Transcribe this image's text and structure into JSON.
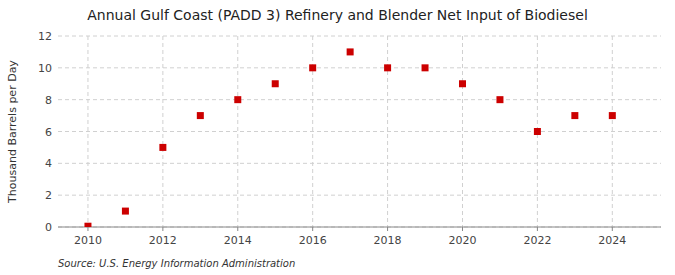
{
  "chart_data": {
    "type": "scatter",
    "title": "Annual Gulf Coast (PADD 3) Refinery and Blender Net Input of Biodiesel",
    "ylabel": "Thousand Barrels per Day",
    "annotations": [
      "Source: U.S. Energy Information Administration"
    ],
    "x": [
      2010,
      2011,
      2012,
      2013,
      2014,
      2015,
      2016,
      2017,
      2018,
      2019,
      2020,
      2021,
      2022,
      2023,
      2024
    ],
    "values": [
      0.05,
      1.0,
      5.0,
      7.0,
      8.0,
      9.0,
      10.0,
      11.0,
      10.0,
      10.0,
      9.0,
      8.0,
      6.0,
      7.0,
      7.0
    ],
    "color": "#cc0000",
    "marker": "square",
    "xlim": [
      2009.2,
      2025.3
    ],
    "ylim": [
      0,
      12
    ],
    "xticks": [
      2010,
      2012,
      2014,
      2016,
      2018,
      2020,
      2022,
      2024
    ],
    "yticks": [
      0,
      2,
      4,
      6,
      8,
      10,
      12
    ],
    "grid": true
  }
}
